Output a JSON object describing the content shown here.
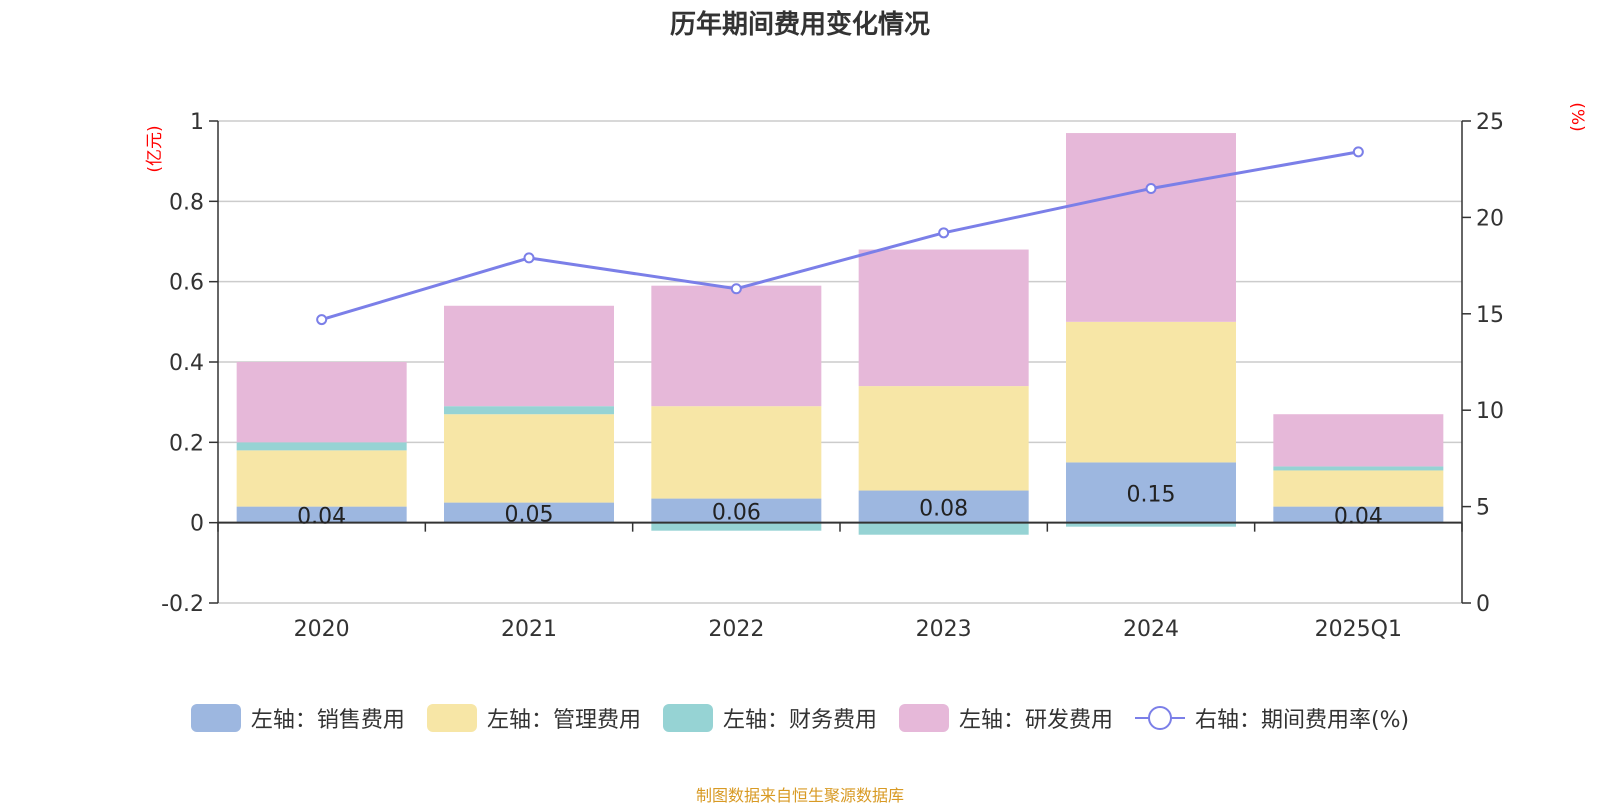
{
  "chart_data": {
    "type": "bar",
    "title": "历年期间费用变化情况",
    "categories": [
      "2020",
      "2021",
      "2022",
      "2023",
      "2024",
      "2025Q1"
    ],
    "left_axis": {
      "unit": "(亿元)",
      "ylim": [
        -0.2,
        1
      ],
      "ticks": [
        -0.2,
        0,
        0.2,
        0.4,
        0.6,
        0.8,
        1
      ],
      "tick_labels": [
        "-0.2",
        "0",
        "0.2",
        "0.4",
        "0.6",
        "0.8",
        "1"
      ]
    },
    "right_axis": {
      "unit": "(%)",
      "ylim": [
        0,
        25
      ],
      "ticks": [
        0,
        5,
        10,
        15,
        20,
        25
      ],
      "tick_labels": [
        "0",
        "5",
        "10",
        "15",
        "20",
        "25"
      ]
    },
    "series": [
      {
        "name": "左轴：销售费用",
        "kind": "bar",
        "color": "#9db7e0",
        "values": [
          0.04,
          0.05,
          0.06,
          0.08,
          0.15,
          0.04
        ],
        "labels": [
          "0.04",
          "0.05",
          "0.06",
          "0.08",
          "0.15",
          "0.04"
        ]
      },
      {
        "name": "左轴：管理费用",
        "kind": "bar",
        "color": "#f7e6a6",
        "values": [
          0.14,
          0.22,
          0.23,
          0.26,
          0.35,
          0.09
        ]
      },
      {
        "name": "左轴：财务费用",
        "kind": "bar",
        "color": "#96d3d4",
        "values": [
          0.02,
          0.02,
          -0.02,
          -0.03,
          -0.01,
          0.01
        ]
      },
      {
        "name": "左轴：研发费用",
        "kind": "bar",
        "color": "#e6b8d9",
        "values": [
          0.2,
          0.25,
          0.3,
          0.34,
          0.47,
          0.13
        ]
      },
      {
        "name": "右轴：期间费用率(%)",
        "kind": "line",
        "axis": "right",
        "color": "#7b7fe8",
        "values": [
          14.7,
          17.9,
          16.3,
          19.2,
          21.5,
          23.4
        ]
      }
    ],
    "legend_position": "bottom"
  },
  "source": "制图数据来自恒生聚源数据库"
}
